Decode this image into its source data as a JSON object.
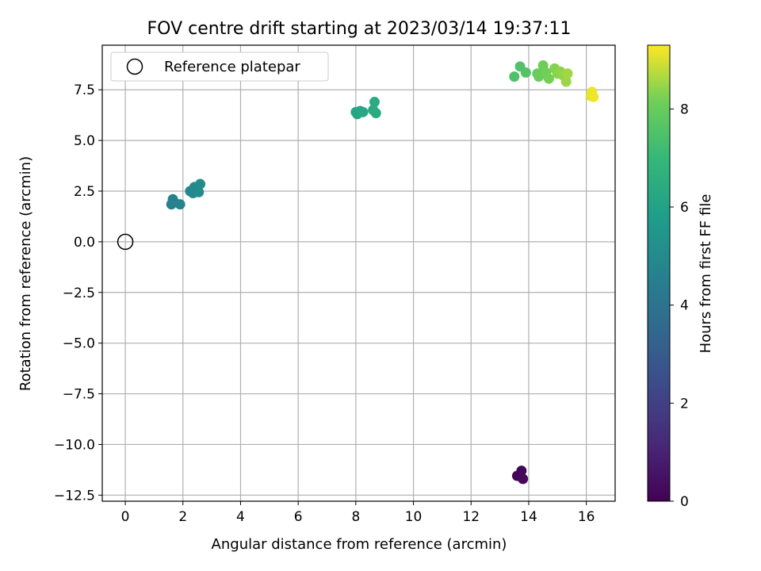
{
  "chart_data": {
    "type": "scatter",
    "title": "FOV centre drift starting at 2023/03/14 19:37:11",
    "xlabel": "Angular distance from reference (arcmin)",
    "ylabel": "Rotation from reference (arcmin)",
    "xlim": [
      -0.8,
      17.0
    ],
    "ylim": [
      -12.8,
      9.7
    ],
    "xticks": [
      0,
      2,
      4,
      6,
      8,
      10,
      12,
      14,
      16
    ],
    "yticks": [
      -12.5,
      -10.0,
      -7.5,
      -5.0,
      -2.5,
      0.0,
      2.5,
      5.0,
      7.5
    ],
    "grid": true,
    "legend": {
      "placement": "top-left",
      "entries": [
        "Reference platepar"
      ]
    },
    "reference_point": {
      "name": "Reference platepar",
      "x": 0,
      "y": 0,
      "marker": "open-circle"
    },
    "colorbar": {
      "label": "Hours from first FF file",
      "colormap": "viridis",
      "range": [
        0,
        9.3
      ],
      "ticks": [
        0,
        2,
        4,
        6,
        8
      ]
    },
    "points": [
      {
        "x": 13.6,
        "y": -11.55,
        "hours": 0.1
      },
      {
        "x": 13.75,
        "y": -11.3,
        "hours": 0.15
      },
      {
        "x": 13.8,
        "y": -11.7,
        "hours": 0.2
      },
      {
        "x": 1.6,
        "y": 1.85,
        "hours": 4.6
      },
      {
        "x": 1.65,
        "y": 2.1,
        "hours": 4.65
      },
      {
        "x": 1.7,
        "y": 1.95,
        "hours": 4.7
      },
      {
        "x": 1.9,
        "y": 1.85,
        "hours": 4.75
      },
      {
        "x": 2.25,
        "y": 2.5,
        "hours": 4.85
      },
      {
        "x": 2.35,
        "y": 2.4,
        "hours": 4.9
      },
      {
        "x": 2.4,
        "y": 2.7,
        "hours": 4.95
      },
      {
        "x": 2.55,
        "y": 2.45,
        "hours": 5.0
      },
      {
        "x": 2.6,
        "y": 2.85,
        "hours": 5.05
      },
      {
        "x": 8.0,
        "y": 6.4,
        "hours": 6.1
      },
      {
        "x": 8.05,
        "y": 6.3,
        "hours": 6.15
      },
      {
        "x": 8.15,
        "y": 6.45,
        "hours": 6.2
      },
      {
        "x": 8.25,
        "y": 6.4,
        "hours": 6.25
      },
      {
        "x": 8.6,
        "y": 6.5,
        "hours": 6.35
      },
      {
        "x": 8.65,
        "y": 6.9,
        "hours": 6.4
      },
      {
        "x": 8.7,
        "y": 6.35,
        "hours": 6.45
      },
      {
        "x": 13.5,
        "y": 8.15,
        "hours": 7.5
      },
      {
        "x": 13.7,
        "y": 8.65,
        "hours": 7.55
      },
      {
        "x": 13.9,
        "y": 8.35,
        "hours": 7.6
      },
      {
        "x": 14.3,
        "y": 8.3,
        "hours": 8.0
      },
      {
        "x": 14.35,
        "y": 8.15,
        "hours": 8.05
      },
      {
        "x": 14.5,
        "y": 8.7,
        "hours": 8.1
      },
      {
        "x": 14.6,
        "y": 8.35,
        "hours": 8.15
      },
      {
        "x": 14.7,
        "y": 8.05,
        "hours": 8.2
      },
      {
        "x": 14.9,
        "y": 8.55,
        "hours": 8.3
      },
      {
        "x": 15.0,
        "y": 8.3,
        "hours": 8.35
      },
      {
        "x": 15.1,
        "y": 8.4,
        "hours": 8.4
      },
      {
        "x": 15.2,
        "y": 8.2,
        "hours": 8.45
      },
      {
        "x": 15.3,
        "y": 7.9,
        "hours": 8.5
      },
      {
        "x": 15.35,
        "y": 8.3,
        "hours": 8.55
      },
      {
        "x": 16.15,
        "y": 7.2,
        "hours": 9.1
      },
      {
        "x": 16.2,
        "y": 7.4,
        "hours": 9.15
      },
      {
        "x": 16.25,
        "y": 7.15,
        "hours": 9.2
      }
    ]
  }
}
